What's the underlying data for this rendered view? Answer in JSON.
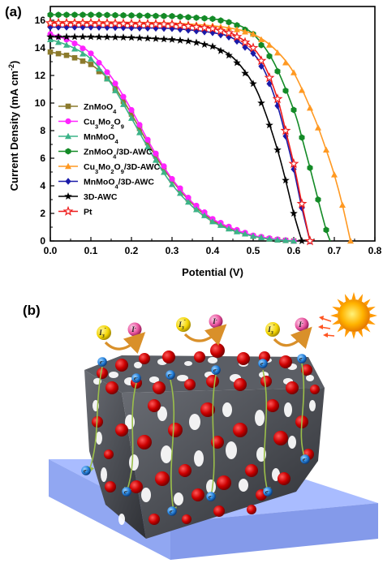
{
  "panel_a_label": "(a)",
  "panel_b_label": "(b)",
  "chart_data": {
    "type": "line",
    "title": "",
    "xlabel": "Potential (V)",
    "ylabel": "Current Density (mA cm-2)",
    "ylabel_main": "Current Density (mA cm",
    "ylabel_sup": "-2",
    "ylabel_close": ")",
    "xlim": [
      0.0,
      0.8
    ],
    "ylim": [
      0,
      17
    ],
    "x_ticks": [
      "0.0",
      "0.1",
      "0.2",
      "0.3",
      "0.4",
      "0.5",
      "0.6",
      "0.7",
      "0.8"
    ],
    "y_ticks": [
      "0",
      "2",
      "4",
      "6",
      "8",
      "10",
      "12",
      "14",
      "16"
    ],
    "legend_position": "left-middle",
    "series": [
      {
        "name": "ZnMoO4",
        "label_parts": [
          [
            "ZnMoO",
            ""
          ],
          [
            "4",
            "sub"
          ]
        ],
        "color": "#8b7a2c",
        "marker": "square",
        "x": [
          0.0,
          0.05,
          0.1,
          0.15,
          0.2,
          0.25,
          0.3,
          0.35,
          0.4,
          0.45,
          0.5,
          0.55,
          0.6
        ],
        "y": [
          13.7,
          13.4,
          12.8,
          11.5,
          9.2,
          6.6,
          4.4,
          2.7,
          1.5,
          0.8,
          0.35,
          0.1,
          0.0
        ]
      },
      {
        "name": "Cu3Mo2O9",
        "label_parts": [
          [
            "Cu",
            ""
          ],
          [
            "3",
            "sub"
          ],
          [
            "Mo",
            ""
          ],
          [
            "2",
            "sub"
          ],
          [
            "O",
            ""
          ],
          [
            "9",
            "sub"
          ]
        ],
        "color": "#ff22ff",
        "marker": "circle",
        "x": [
          0.0,
          0.05,
          0.1,
          0.15,
          0.2,
          0.25,
          0.3,
          0.35,
          0.4,
          0.45,
          0.5,
          0.55,
          0.6
        ],
        "y": [
          15.0,
          14.5,
          13.6,
          11.9,
          9.5,
          6.8,
          4.5,
          2.8,
          1.6,
          0.9,
          0.4,
          0.15,
          0.0
        ]
      },
      {
        "name": "MnMoO4",
        "label_parts": [
          [
            "MnMoO",
            ""
          ],
          [
            "4",
            "sub"
          ]
        ],
        "color": "#3cb388",
        "marker": "triangle",
        "x": [
          0.0,
          0.05,
          0.1,
          0.15,
          0.2,
          0.25,
          0.3,
          0.35,
          0.4,
          0.45,
          0.5,
          0.55,
          0.6
        ],
        "y": [
          14.6,
          14.1,
          13.2,
          11.4,
          8.9,
          6.3,
          4.1,
          2.5,
          1.4,
          0.75,
          0.35,
          0.1,
          0.0
        ]
      },
      {
        "name": "ZnMoO4/3D-AWC",
        "label_parts": [
          [
            "ZnMoO",
            ""
          ],
          [
            "4",
            "sub"
          ],
          [
            "/3D-AWC",
            ""
          ]
        ],
        "color": "#138a26",
        "marker": "hexagon",
        "x": [
          0.0,
          0.1,
          0.2,
          0.3,
          0.4,
          0.45,
          0.5,
          0.55,
          0.6,
          0.62,
          0.64,
          0.66,
          0.68,
          0.69
        ],
        "y": [
          16.4,
          16.4,
          16.35,
          16.3,
          16.1,
          15.8,
          15.0,
          13.0,
          9.5,
          7.5,
          5.3,
          3.0,
          0.8,
          0.0
        ]
      },
      {
        "name": "Cu3Mo2O9/3D-AWC",
        "label_parts": [
          [
            "Cu",
            ""
          ],
          [
            "3",
            "sub"
          ],
          [
            "Mo",
            ""
          ],
          [
            "2",
            "sub"
          ],
          [
            "O",
            ""
          ],
          [
            "9",
            "sub"
          ],
          [
            "/3D-AWC",
            ""
          ]
        ],
        "color": "#ff9922",
        "marker": "triangle",
        "x": [
          0.0,
          0.1,
          0.2,
          0.3,
          0.4,
          0.45,
          0.5,
          0.55,
          0.6,
          0.65,
          0.68,
          0.7,
          0.72,
          0.74
        ],
        "y": [
          15.9,
          15.9,
          15.85,
          15.8,
          15.6,
          15.4,
          15.0,
          14.0,
          12.2,
          9.0,
          6.6,
          4.8,
          2.6,
          0.0
        ]
      },
      {
        "name": "MnMoO4/3D-AWC",
        "label_parts": [
          [
            "MnMoO",
            ""
          ],
          [
            "4",
            "sub"
          ],
          [
            "/3D-AWC",
            ""
          ]
        ],
        "color": "#1a1aa8",
        "marker": "diamond",
        "x": [
          0.0,
          0.1,
          0.2,
          0.3,
          0.4,
          0.45,
          0.5,
          0.53,
          0.56,
          0.58,
          0.6,
          0.62,
          0.64
        ],
        "y": [
          15.5,
          15.5,
          15.45,
          15.4,
          15.1,
          14.7,
          13.6,
          12.2,
          9.8,
          7.6,
          5.2,
          2.4,
          0.0
        ]
      },
      {
        "name": "3D-AWC",
        "label_parts": [
          [
            "3D-AWC",
            ""
          ]
        ],
        "color": "#000000",
        "marker": "star",
        "x": [
          0.0,
          0.1,
          0.2,
          0.3,
          0.35,
          0.4,
          0.45,
          0.5,
          0.53,
          0.56,
          0.58,
          0.6,
          0.62
        ],
        "y": [
          14.8,
          14.8,
          14.75,
          14.6,
          14.45,
          14.1,
          13.3,
          11.4,
          9.3,
          6.6,
          4.4,
          2.0,
          0.0
        ]
      },
      {
        "name": "Pt",
        "label_parts": [
          [
            "Pt",
            ""
          ]
        ],
        "color": "#ee1c1c",
        "marker": "star-open",
        "x": [
          0.0,
          0.1,
          0.2,
          0.3,
          0.4,
          0.45,
          0.5,
          0.53,
          0.56,
          0.58,
          0.6,
          0.62,
          0.64
        ],
        "y": [
          15.8,
          15.8,
          15.75,
          15.7,
          15.4,
          15.0,
          14.0,
          12.6,
          10.3,
          8.0,
          5.6,
          2.7,
          0.0
        ]
      }
    ]
  },
  "schematic": {
    "electron_label": "e",
    "electron_sup": "-",
    "ion_left_label": "I",
    "ion_left_sub": "3",
    "ion_left_sup": "-",
    "ion_right_label": "I",
    "ion_right_sup": "-",
    "colors": {
      "substrate": "#9ab0ff",
      "framework": "#4a4c52",
      "particles": "#cc0000",
      "electron": "#2a86e0",
      "arrow": "#d9902a",
      "sun": "#ffaa00"
    }
  }
}
